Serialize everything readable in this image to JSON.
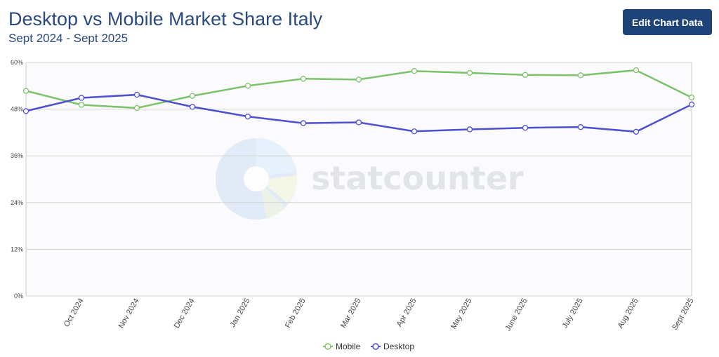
{
  "header": {
    "title": "Desktop vs Mobile Market Share Italy",
    "subtitle": "Sept 2024 - Sept 2025",
    "edit_button": "Edit Chart Data"
  },
  "watermark": "statcounter",
  "chart_data": {
    "type": "line",
    "categories": [
      "Sept 2024",
      "Oct 2024",
      "Nov 2024",
      "Dec 2024",
      "Jan 2025",
      "Feb 2025",
      "Mar 2025",
      "Apr 2025",
      "May 2025",
      "June 2025",
      "July 2025",
      "Aug 2025",
      "Sept 2025"
    ],
    "x_tick_labels": [
      "",
      "Oct 2024",
      "Nov 2024",
      "Dec 2024",
      "Jan 2025",
      "Feb 2025",
      "Mar 2025",
      "Apr 2025",
      "May 2025",
      "June 2025",
      "July 2025",
      "Aug 2025",
      "Sept 2025"
    ],
    "y_ticks": [
      "0%",
      "12%",
      "24%",
      "36%",
      "48%",
      "60%"
    ],
    "ylim": [
      0,
      60
    ],
    "grid": true,
    "legend": "bottom",
    "series": [
      {
        "name": "Mobile",
        "color": "#7cc26a",
        "values": [
          52.7,
          49.1,
          48.3,
          51.4,
          54.0,
          55.8,
          55.6,
          57.8,
          57.3,
          56.8,
          56.7,
          58.0,
          51.0
        ]
      },
      {
        "name": "Desktop",
        "color": "#4d4ed0",
        "values": [
          47.5,
          50.9,
          51.7,
          48.6,
          46.1,
          44.4,
          44.6,
          42.3,
          42.8,
          43.2,
          43.4,
          42.2,
          49.2
        ]
      }
    ]
  }
}
